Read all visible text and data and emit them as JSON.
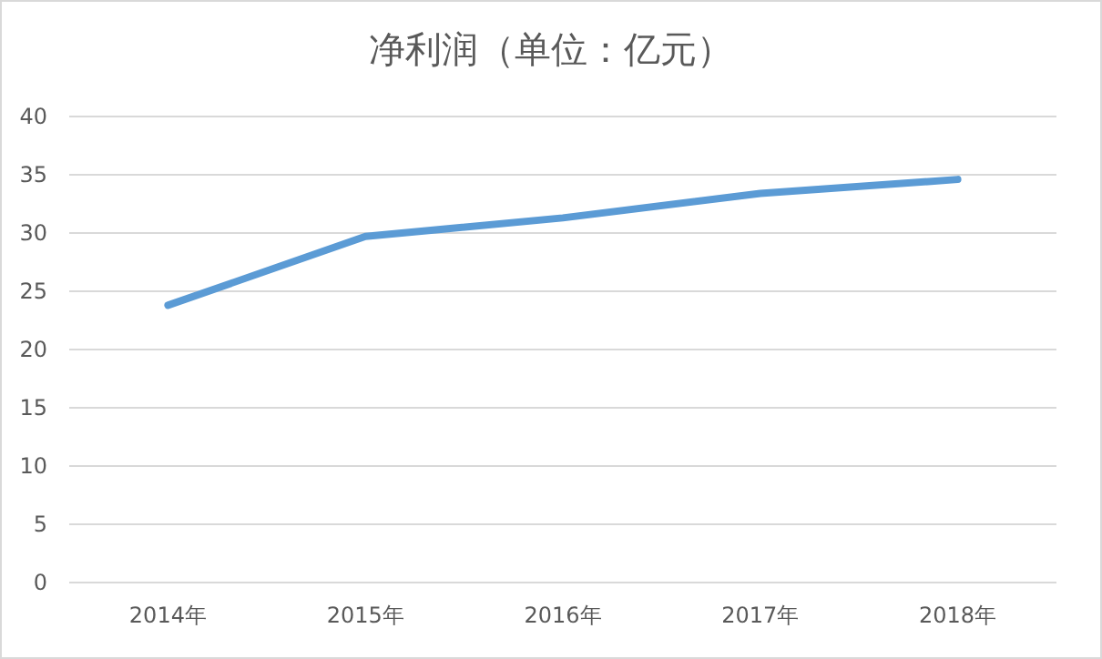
{
  "chart_data": {
    "type": "line",
    "title": "净利润（单位：亿元）",
    "categories": [
      "2014年",
      "2015年",
      "2016年",
      "2017年",
      "2018年"
    ],
    "series": [
      {
        "color": "#5b9bd5",
        "values": [
          23.8,
          29.7,
          31.3,
          33.4,
          34.6
        ]
      }
    ],
    "ylim": [
      0,
      40
    ],
    "yticks": [
      0,
      5,
      10,
      15,
      20,
      25,
      30,
      35,
      40
    ],
    "grid": "y",
    "marker": "none",
    "line_style": "solid"
  }
}
